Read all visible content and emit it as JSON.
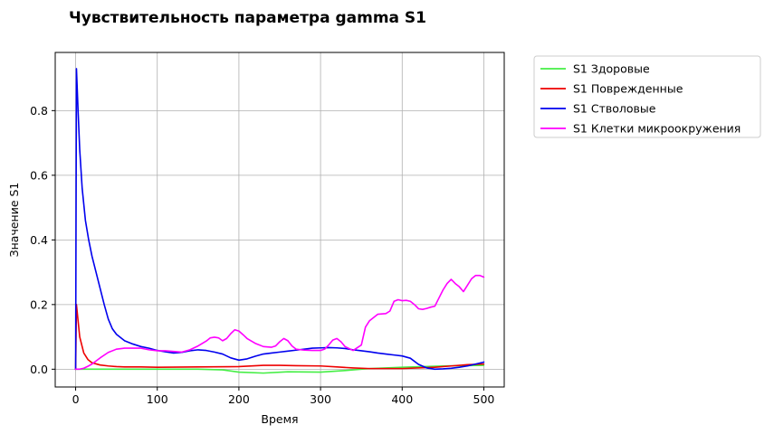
{
  "chart_data": {
    "type": "line",
    "title": "Чувствительность параметра gamma S1",
    "xlabel": "Время",
    "ylabel": "Значение S1",
    "xlim": [
      -25,
      525
    ],
    "ylim": [
      -0.055,
      0.98
    ],
    "xticks": [
      0,
      100,
      200,
      300,
      400,
      500
    ],
    "yticks": [
      0.0,
      0.2,
      0.4,
      0.6,
      0.8
    ],
    "xtick_labels": [
      "0",
      "100",
      "200",
      "300",
      "400",
      "500"
    ],
    "ytick_labels": [
      "0.0",
      "0.2",
      "0.4",
      "0.6",
      "0.8"
    ],
    "grid": true,
    "legend_position": "outside-top-right",
    "series": [
      {
        "name": "S1 Здоровые",
        "color": "#44ee44",
        "x": [
          0,
          20,
          50,
          100,
          150,
          180,
          200,
          230,
          260,
          300,
          330,
          360,
          400,
          450,
          500
        ],
        "y": [
          0.0,
          0.0,
          0.0,
          0.0,
          0.0,
          -0.002,
          -0.009,
          -0.012,
          -0.008,
          -0.009,
          -0.004,
          0.002,
          0.006,
          0.01,
          0.012
        ]
      },
      {
        "name": "S1 Поврежденные",
        "color": "#ee0000",
        "x": [
          0,
          1,
          5,
          10,
          15,
          20,
          30,
          40,
          50,
          60,
          80,
          100,
          150,
          200,
          230,
          250,
          270,
          300,
          320,
          340,
          360,
          400,
          440,
          460,
          480,
          500
        ],
        "y": [
          0.0,
          0.2,
          0.1,
          0.05,
          0.03,
          0.02,
          0.013,
          0.01,
          0.008,
          0.007,
          0.007,
          0.006,
          0.007,
          0.008,
          0.012,
          0.012,
          0.011,
          0.01,
          0.007,
          0.004,
          0.002,
          0.002,
          0.006,
          0.01,
          0.014,
          0.016
        ]
      },
      {
        "name": "S1 Стволовые",
        "color": "#0000ee",
        "x": [
          0,
          1,
          3,
          5,
          8,
          12,
          16,
          20,
          25,
          30,
          35,
          40,
          45,
          50,
          60,
          70,
          80,
          90,
          100,
          110,
          120,
          130,
          140,
          150,
          160,
          170,
          180,
          190,
          200,
          210,
          220,
          230,
          240,
          250,
          260,
          270,
          280,
          290,
          300,
          310,
          320,
          330,
          340,
          350,
          360,
          370,
          380,
          390,
          400,
          410,
          420,
          430,
          440,
          450,
          460,
          470,
          480,
          490,
          500
        ],
        "y": [
          0.0,
          0.93,
          0.8,
          0.68,
          0.56,
          0.46,
          0.4,
          0.35,
          0.3,
          0.25,
          0.2,
          0.155,
          0.125,
          0.108,
          0.088,
          0.078,
          0.07,
          0.065,
          0.058,
          0.054,
          0.05,
          0.052,
          0.057,
          0.06,
          0.058,
          0.053,
          0.047,
          0.035,
          0.028,
          0.032,
          0.04,
          0.047,
          0.05,
          0.053,
          0.056,
          0.059,
          0.062,
          0.065,
          0.066,
          0.067,
          0.066,
          0.064,
          0.06,
          0.057,
          0.054,
          0.05,
          0.047,
          0.044,
          0.041,
          0.034,
          0.015,
          0.004,
          0.0,
          0.001,
          0.003,
          0.006,
          0.01,
          0.016,
          0.022
        ]
      },
      {
        "name": "S1 Клетки микроокружения",
        "color": "#ff00ff",
        "x": [
          0,
          5,
          10,
          15,
          20,
          30,
          40,
          50,
          60,
          70,
          80,
          90,
          100,
          110,
          120,
          130,
          140,
          150,
          160,
          165,
          170,
          175,
          180,
          185,
          190,
          195,
          200,
          205,
          210,
          220,
          230,
          240,
          245,
          250,
          255,
          260,
          265,
          270,
          280,
          290,
          300,
          305,
          310,
          315,
          320,
          325,
          330,
          340,
          350,
          355,
          360,
          370,
          380,
          385,
          390,
          395,
          400,
          405,
          410,
          415,
          420,
          425,
          430,
          435,
          440,
          445,
          450,
          455,
          460,
          465,
          470,
          475,
          480,
          485,
          490,
          495,
          500
        ],
        "y": [
          0.0,
          0.0,
          0.003,
          0.009,
          0.016,
          0.035,
          0.052,
          0.062,
          0.065,
          0.065,
          0.065,
          0.06,
          0.057,
          0.057,
          0.055,
          0.053,
          0.06,
          0.072,
          0.087,
          0.097,
          0.099,
          0.097,
          0.088,
          0.095,
          0.11,
          0.122,
          0.118,
          0.107,
          0.095,
          0.08,
          0.07,
          0.068,
          0.072,
          0.085,
          0.095,
          0.088,
          0.072,
          0.062,
          0.059,
          0.058,
          0.058,
          0.062,
          0.075,
          0.09,
          0.095,
          0.085,
          0.07,
          0.058,
          0.075,
          0.13,
          0.15,
          0.17,
          0.172,
          0.18,
          0.21,
          0.215,
          0.212,
          0.213,
          0.21,
          0.2,
          0.187,
          0.185,
          0.188,
          0.192,
          0.195,
          0.22,
          0.245,
          0.265,
          0.278,
          0.265,
          0.255,
          0.24,
          0.26,
          0.28,
          0.29,
          0.29,
          0.285
        ]
      }
    ]
  }
}
